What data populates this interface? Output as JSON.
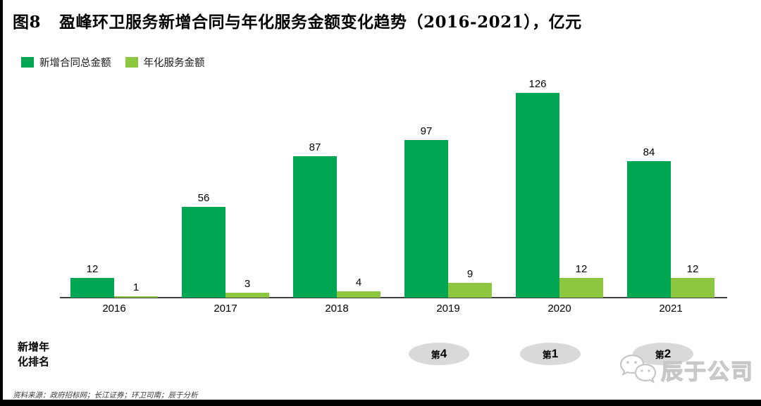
{
  "figure": {
    "label": "图8",
    "title": "盈峰环卫服务新增合同与年化服务金额变化趋势（2016-2021），亿元"
  },
  "legend": {
    "items": [
      {
        "label": "新增合同总金额",
        "color": "#00A651"
      },
      {
        "label": "年化服务金额",
        "color": "#8DC63F"
      }
    ]
  },
  "chart_data": {
    "type": "bar",
    "title": "盈峰环卫服务新增合同与年化服务金额变化趋势（2016-2021），亿元",
    "unit": "亿元",
    "categories": [
      "2016",
      "2017",
      "2018",
      "2019",
      "2020",
      "2021"
    ],
    "series": [
      {
        "name": "新增合同总金额",
        "color": "#00A651",
        "values": [
          12,
          56,
          87,
          97,
          126,
          84
        ]
      },
      {
        "name": "年化服务金额",
        "color": "#8DC63F",
        "values": [
          1,
          3,
          4,
          9,
          12,
          12
        ]
      }
    ],
    "ylim": [
      0,
      126
    ],
    "grid": false,
    "legend_position": "top-left",
    "data_labels": true,
    "xlabel": "",
    "ylabel": ""
  },
  "ranking": {
    "caption_line1": "新增年",
    "caption_line2": "化排名",
    "badges": [
      {
        "category": "2019",
        "prefix": "第",
        "rank": "4"
      },
      {
        "category": "2020",
        "prefix": "第",
        "rank": "1"
      },
      {
        "category": "2021",
        "prefix": "第",
        "rank": "2"
      }
    ]
  },
  "source_note": "资料来源：政府招标网；长江证券；环卫司南；辰于分析",
  "watermark": {
    "icon": "wechat-icon",
    "text": "辰于公司"
  },
  "colors": {
    "primary_green": "#00A651",
    "light_green": "#8DC63F",
    "axis": "#3f3f3f",
    "badge_gray": "#d9d9d9",
    "watermark_gray": "#c6c6c6"
  }
}
